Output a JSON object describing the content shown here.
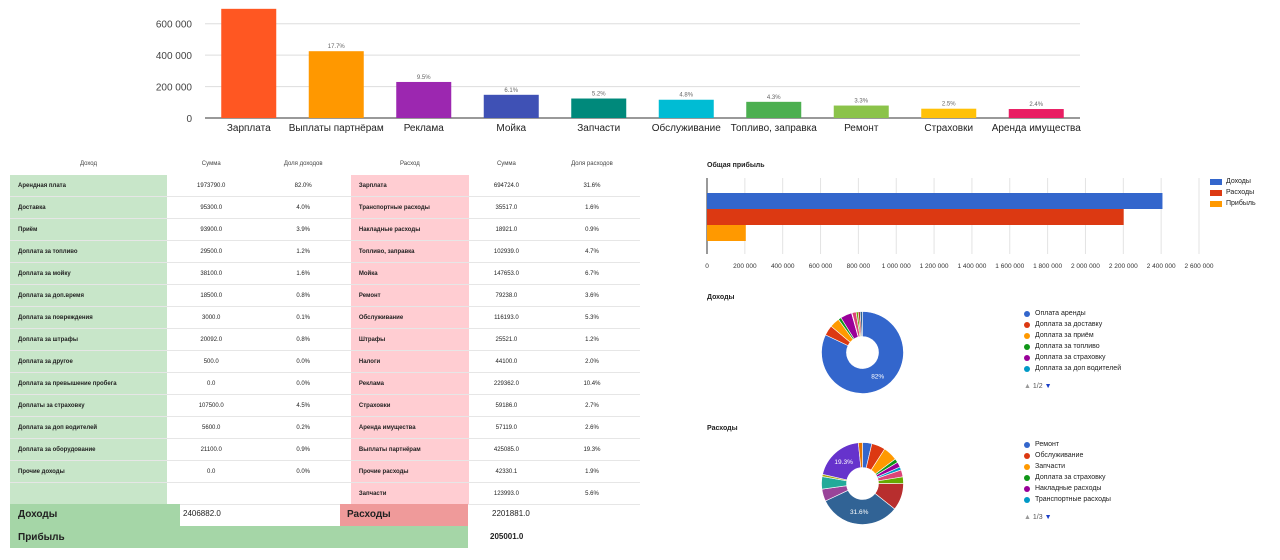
{
  "chart_data": [
    {
      "type": "bar",
      "categories": [
        "Зарплата",
        "Выплаты партнёрам",
        "Реклама",
        "Мойка",
        "Запчасти",
        "Обслуживание",
        "Топливо, заправка",
        "Ремонт",
        "Страховки",
        "Аренда имущества"
      ],
      "values": [
        694724,
        425085,
        229362,
        147653,
        123993,
        116193,
        102939,
        79238,
        59186,
        57119
      ],
      "labels": [
        "",
        "17.7%",
        "9.5%",
        "6.1%",
        "5.2%",
        "4.8%",
        "4.3%",
        "3.3%",
        "2.5%",
        "2.4%"
      ],
      "colors": [
        "#ff5722",
        "#ff9800",
        "#9c27b0",
        "#3f51b5",
        "#00897b",
        "#00bcd4",
        "#4caf50",
        "#8bc34a",
        "#ffc107",
        "#e91e63"
      ],
      "yticks": [
        "0",
        "200 000",
        "400 000",
        "600 000"
      ],
      "ylim": [
        0,
        700000
      ]
    },
    {
      "type": "bar",
      "orientation": "horizontal",
      "title": "Общая прибыль",
      "series": [
        {
          "name": "Доходы",
          "values": [
            2406882.0
          ],
          "color": "#3366cc"
        },
        {
          "name": "Расходы",
          "values": [
            2201881.0
          ],
          "color": "#dc3912"
        },
        {
          "name": "Прибыль",
          "values": [
            205001.0
          ],
          "color": "#ff9900"
        }
      ],
      "xticks": [
        "0",
        "200 000",
        "400 000",
        "600 000",
        "800 000",
        "1 000 000",
        "1 200 000",
        "1 400 000",
        "1 600 000",
        "1 800 000",
        "2 000 000",
        "2 200 000",
        "2 400 000",
        "2 600 000"
      ],
      "xlim": [
        0,
        2600000
      ],
      "legend": "right"
    },
    {
      "type": "pie",
      "title": "Доходы",
      "donut": true,
      "slices": [
        {
          "label": "Оплата аренды",
          "value": 82.0,
          "color": "#3366cc",
          "text": "82%"
        },
        {
          "label": "Доплата за доставку",
          "value": 4.0,
          "color": "#dc3912",
          "text": ""
        },
        {
          "label": "Доплата за приём",
          "value": 3.9,
          "color": "#ff9900",
          "text": ""
        },
        {
          "label": "Доплата за топливо",
          "value": 1.2,
          "color": "#109618",
          "text": ""
        },
        {
          "label": "Доплата за страховку",
          "value": 4.5,
          "color": "#990099",
          "text": ""
        },
        {
          "label": "Доплата за доп водителей",
          "value": 0.2,
          "color": "#0099c6",
          "text": ""
        },
        {
          "label": "",
          "value": 1.6,
          "color": "#dd4477",
          "text": ""
        },
        {
          "label": "",
          "value": 0.8,
          "color": "#66aa00",
          "text": ""
        },
        {
          "label": "",
          "value": 0.8,
          "color": "#b82e2e",
          "text": ""
        },
        {
          "label": "",
          "value": 0.9,
          "color": "#316395",
          "text": ""
        }
      ],
      "pager": "1/2"
    },
    {
      "type": "pie",
      "title": "Расходы",
      "donut": true,
      "slices": [
        {
          "label": "Ремонт",
          "value": 3.6,
          "color": "#3366cc",
          "text": ""
        },
        {
          "label": "Обслуживание",
          "value": 5.3,
          "color": "#dc3912",
          "text": ""
        },
        {
          "label": "Запчасти",
          "value": 5.6,
          "color": "#ff9900",
          "text": ""
        },
        {
          "label": "Доплата за страховку",
          "value": 1.5,
          "color": "#109618",
          "text": ""
        },
        {
          "label": "",
          "value": 2.0,
          "color": "#990099",
          "text": ""
        },
        {
          "label": "",
          "value": 1.2,
          "color": "#0099c6",
          "text": ""
        },
        {
          "label": "",
          "value": 2.7,
          "color": "#dd4477",
          "text": ""
        },
        {
          "label": "",
          "value": 2.6,
          "color": "#66aa00",
          "text": ""
        },
        {
          "label": "",
          "value": 10.4,
          "color": "#b82e2e",
          "text": ""
        },
        {
          "label": "",
          "value": 31.6,
          "color": "#316395",
          "text": "31.6%"
        },
        {
          "label": "",
          "value": 4.7,
          "color": "#994499",
          "text": ""
        },
        {
          "label": "",
          "value": 4.8,
          "color": "#22aa99",
          "text": ""
        },
        {
          "label": "Накладные расходы",
          "value": 0.9,
          "color": "#aaaa11",
          "text": ""
        },
        {
          "label": "",
          "value": 19.3,
          "color": "#6633cc",
          "text": "19.3%"
        },
        {
          "label": "Транспортные расходы",
          "value": 1.6,
          "color": "#e67300",
          "text": ""
        }
      ],
      "legend_items": [
        {
          "label": "Ремонт",
          "color": "#3366cc"
        },
        {
          "label": "Обслуживание",
          "color": "#dc3912"
        },
        {
          "label": "Запчасти",
          "color": "#ff9900"
        },
        {
          "label": "Доплата за страховку",
          "color": "#109618"
        },
        {
          "label": "Накладные расходы",
          "color": "#990099"
        },
        {
          "label": "Транспортные расходы",
          "color": "#0099c6"
        }
      ],
      "pager": "1/3"
    }
  ],
  "income_table": {
    "headers": [
      "Доход",
      "Сумма",
      "Доля доходов"
    ],
    "rows": [
      [
        "Арендная плата",
        "1973790.0",
        "82.0%"
      ],
      [
        "Доставка",
        "95300.0",
        "4.0%"
      ],
      [
        "Приём",
        "93900.0",
        "3.9%"
      ],
      [
        "Доплата за топливо",
        "29500.0",
        "1.2%"
      ],
      [
        "Доплата за мойку",
        "38100.0",
        "1.6%"
      ],
      [
        "Доплата за доп.время",
        "18500.0",
        "0.8%"
      ],
      [
        "Доплата за повреждения",
        "3000.0",
        "0.1%"
      ],
      [
        "Доплата за штрафы",
        "20092.0",
        "0.8%"
      ],
      [
        "Доплата за другое",
        "500.0",
        "0.0%"
      ],
      [
        "Доплата за превышение пробега",
        "0.0",
        "0.0%"
      ],
      [
        "Доплаты за страховку",
        "107500.0",
        "4.5%"
      ],
      [
        "Доплата за доп водителей",
        "5600.0",
        "0.2%"
      ],
      [
        "Доплата за оборудование",
        "21100.0",
        "0.9%"
      ],
      [
        "Прочие доходы",
        "0.0",
        "0.0%"
      ],
      [
        "",
        "",
        ""
      ]
    ]
  },
  "expense_table": {
    "headers": [
      "Расход",
      "Сумма",
      "Доля расходов"
    ],
    "rows": [
      [
        "Зарплата",
        "694724.0",
        "31.6%"
      ],
      [
        "Транспортные расходы",
        "35517.0",
        "1.6%"
      ],
      [
        "Накладные расходы",
        "18921.0",
        "0.9%"
      ],
      [
        "Топливо, заправка",
        "102939.0",
        "4.7%"
      ],
      [
        "Мойка",
        "147653.0",
        "6.7%"
      ],
      [
        "Ремонт",
        "79238.0",
        "3.6%"
      ],
      [
        "Обслуживание",
        "116193.0",
        "5.3%"
      ],
      [
        "Штрафы",
        "25521.0",
        "1.2%"
      ],
      [
        "Налоги",
        "44100.0",
        "2.0%"
      ],
      [
        "Реклама",
        "229362.0",
        "10.4%"
      ],
      [
        "Страховки",
        "59186.0",
        "2.7%"
      ],
      [
        "Аренда имущества",
        "57119.0",
        "2.6%"
      ],
      [
        "Выплаты партнёрам",
        "425085.0",
        "19.3%"
      ],
      [
        "Прочие расходы",
        "42330.1",
        "1.9%"
      ],
      [
        "Запчасти",
        "123993.0",
        "5.6%"
      ]
    ]
  },
  "totals": {
    "income_label": "Доходы",
    "income_value": "2406882.0",
    "expense_label": "Расходы",
    "expense_value": "2201881.0",
    "profit_label": "Прибыль",
    "profit_value": "205001.0"
  },
  "colors": {
    "income_bg": "#c8e6c9",
    "income_total_bg": "#a5d6a7",
    "expense_bg": "#ffcdd2",
    "expense_total_bg": "#ef9a9a"
  }
}
